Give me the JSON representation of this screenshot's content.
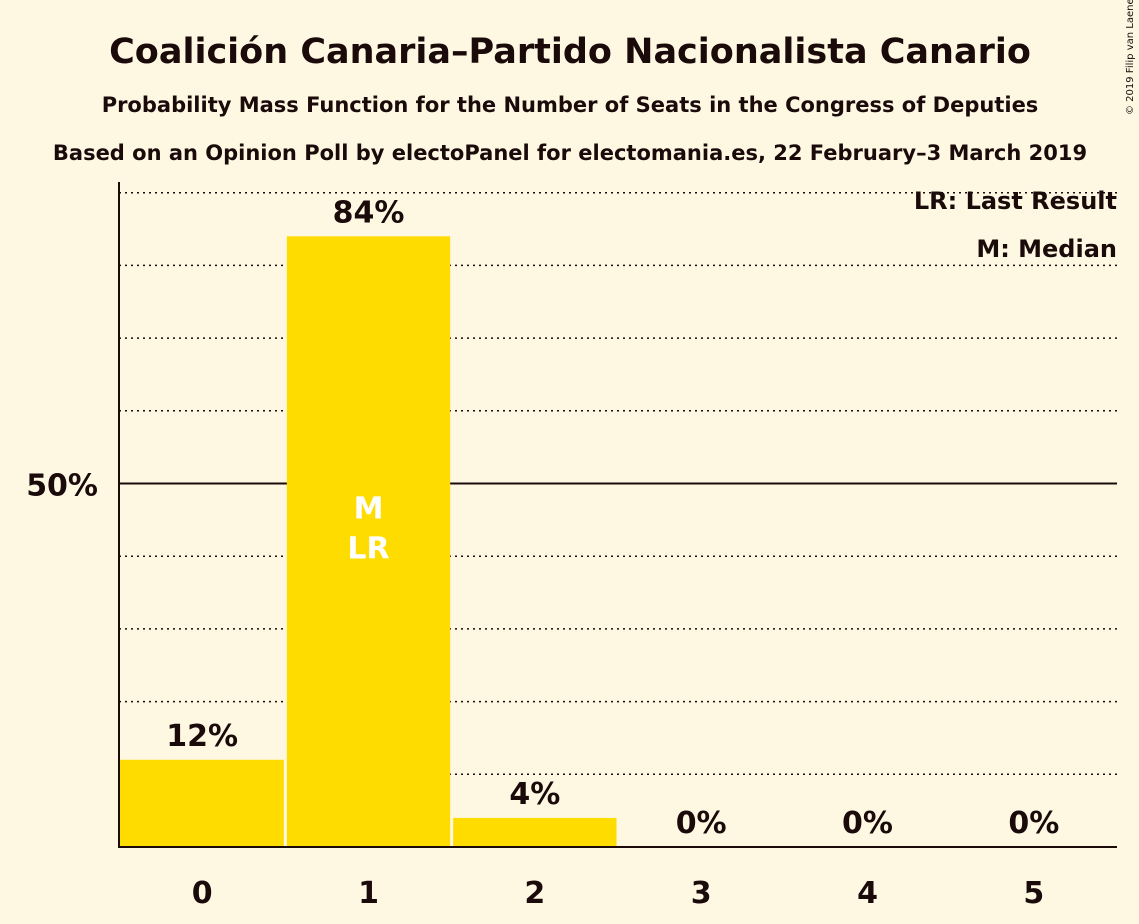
{
  "title": "Coalición Canaria–Partido Nacionalista Canario",
  "subtitle": "Probability Mass Function for the Number of Seats in the Congress of Deputies",
  "source_line": "Based on an Opinion Poll by electoPanel for electomania.es, 22 February–3 March 2019",
  "copyright": "© 2019 Filip van Laenen",
  "legend": {
    "last_result": "LR: Last Result",
    "median": "M: Median"
  },
  "colors": {
    "background": "#fef8e3",
    "bar": "#ffdc00",
    "text": "#1a0a0a"
  },
  "chart_data": {
    "type": "bar",
    "categories": [
      "0",
      "1",
      "2",
      "3",
      "4",
      "5"
    ],
    "values": [
      12,
      84,
      4,
      0,
      0,
      0
    ],
    "data_labels": [
      "12%",
      "84%",
      "4%",
      "0%",
      "0%",
      "0%"
    ],
    "bar_markers": [
      [],
      [
        "M",
        "LR"
      ],
      [],
      [],
      [],
      []
    ],
    "ylim": [
      0,
      100
    ],
    "ytick_labels": [
      {
        "value": 50,
        "label": "50%"
      }
    ],
    "gridline_step": 10,
    "grid": true,
    "legend_position": "top-right",
    "xlabel": "",
    "ylabel": ""
  }
}
